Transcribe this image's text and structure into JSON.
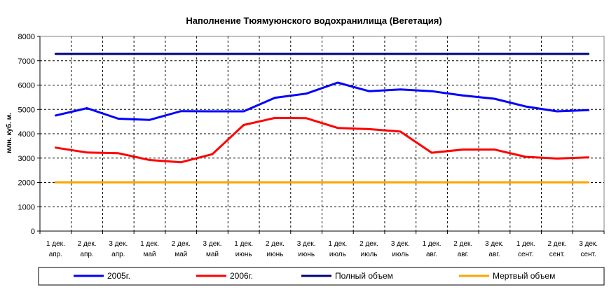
{
  "chart_data": {
    "type": "line",
    "title": "Наполнение Тюямуюнского водохранилища (Вегетация)",
    "xlabel": "",
    "ylabel": "млн. куб. м.",
    "ylim": [
      0,
      8000
    ],
    "yticks": [
      0,
      1000,
      2000,
      3000,
      4000,
      5000,
      6000,
      7000,
      8000
    ],
    "grid": true,
    "legend_position": "bottom",
    "categories": [
      {
        "line1": "1 дек.",
        "line2": "апр."
      },
      {
        "line1": "2 дек.",
        "line2": "апр."
      },
      {
        "line1": "3 дек.",
        "line2": "апр."
      },
      {
        "line1": "1 дек.",
        "line2": "май"
      },
      {
        "line1": "2 дек.",
        "line2": "май"
      },
      {
        "line1": "3 дек.",
        "line2": "май"
      },
      {
        "line1": "1 дек.",
        "line2": "июнь"
      },
      {
        "line1": "2 дек.",
        "line2": "июнь"
      },
      {
        "line1": "3 дек.",
        "line2": "июнь"
      },
      {
        "line1": "1 дек.",
        "line2": "июль"
      },
      {
        "line1": "2 дек.",
        "line2": "июль"
      },
      {
        "line1": "3 дек.",
        "line2": "июль"
      },
      {
        "line1": "1 дек.",
        "line2": "авг."
      },
      {
        "line1": "2 дек.",
        "line2": "авг."
      },
      {
        "line1": "3 дек.",
        "line2": "авг."
      },
      {
        "line1": "1 дек.",
        "line2": "сент."
      },
      {
        "line1": "2 дек.",
        "line2": "сент."
      },
      {
        "line1": "3 дек.",
        "line2": "сент."
      }
    ],
    "series": [
      {
        "name": "2005г.",
        "color": "#0000ff",
        "values": [
          4750,
          5050,
          4620,
          4570,
          4930,
          4920,
          4920,
          5480,
          5650,
          6100,
          5750,
          5820,
          5750,
          5570,
          5440,
          5120,
          4920,
          4970
        ]
      },
      {
        "name": "2006г.",
        "color": "#ff0000",
        "values": [
          3430,
          3230,
          3200,
          2920,
          2830,
          3160,
          4360,
          4650,
          4640,
          4240,
          4190,
          4090,
          3220,
          3350,
          3350,
          3050,
          2980,
          3030
        ]
      },
      {
        "name": "Полный объем",
        "color": "#000080",
        "values": [
          7280,
          7280,
          7280,
          7280,
          7280,
          7280,
          7280,
          7280,
          7280,
          7280,
          7280,
          7280,
          7280,
          7280,
          7280,
          7280,
          7280,
          7280
        ]
      },
      {
        "name": "Мертвый объем",
        "color": "#ffa500",
        "values": [
          2000,
          2000,
          2000,
          2000,
          2000,
          2000,
          2000,
          2000,
          2000,
          2000,
          2000,
          2000,
          2000,
          2000,
          2000,
          2000,
          2000,
          2000
        ]
      }
    ]
  }
}
